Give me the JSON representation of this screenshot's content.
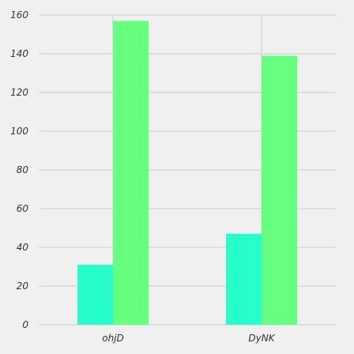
{
  "chart_data": {
    "type": "bar",
    "categories": [
      "ohjD",
      "DyNK"
    ],
    "series": [
      {
        "values": [
          31,
          47
        ],
        "color": "#26ffcc"
      },
      {
        "values": [
          157,
          139
        ],
        "color": "#66ff80"
      }
    ],
    "title": "",
    "xlabel": "",
    "ylabel": "",
    "ylim": [
      0,
      160
    ],
    "yticks": [
      0,
      20,
      40,
      60,
      80,
      100,
      120,
      140,
      160
    ],
    "grid": true,
    "background": "#f0f0f0",
    "grid_color": "#cbcbcb"
  }
}
